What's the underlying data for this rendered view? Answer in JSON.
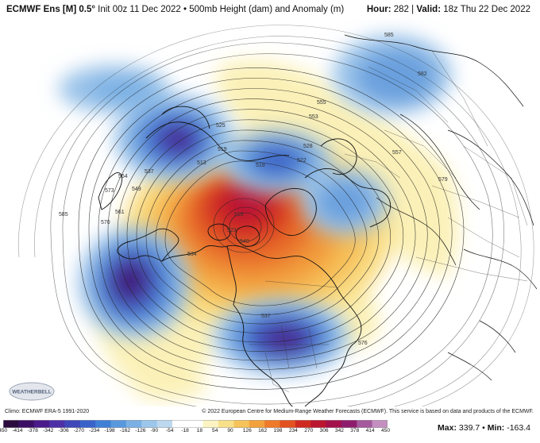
{
  "header": {
    "model": "ECMWF Ens [M]",
    "resolution": "0.5°",
    "init": "Init 00z 11 Dec 2022",
    "field": "500mb Height (dam) and Anomaly (m)",
    "hour_label": "Hour:",
    "hour_value": "282",
    "valid_label": "Valid:",
    "valid_value": "18z Thu 22 Dec 2022"
  },
  "footer": {
    "climo": "Climo: ECMWF ERA-5 1991-2020",
    "credit": "© 2022 European Centre for Medium-Range Weather Forecasts (ECMWF). This service is based on data and products of the ECMWF."
  },
  "logo": {
    "icon": "weatherbell-logo-icon",
    "text": "WEATHERBELL"
  },
  "stats": {
    "max_label": "Max:",
    "max_value": "339.7",
    "min_label": "Min:",
    "min_value": "-163.4"
  },
  "colorbar": {
    "labels": [
      "-450",
      "-414",
      "-378",
      "-342",
      "-306",
      "-270",
      "-234",
      "-198",
      "-162",
      "-126",
      "-90",
      "-54",
      "-18",
      "18",
      "54",
      "90",
      "126",
      "162",
      "198",
      "234",
      "270",
      "306",
      "342",
      "378",
      "414",
      "450"
    ],
    "colors": [
      "#2b0a3d",
      "#3a0f63",
      "#4a1a8a",
      "#4d2fa6",
      "#3f47b8",
      "#3a63c9",
      "#3f7fd6",
      "#5a98dd",
      "#7bb0e4",
      "#9cc6ea",
      "#bcd8ef",
      "#ffffff",
      "#ffffff",
      "#fbf4c2",
      "#f7e08a",
      "#f6c35a",
      "#f3a13c",
      "#ee7a2a",
      "#e35221",
      "#d02a20",
      "#bb1530",
      "#a3104a",
      "#8e1c6c",
      "#a45a9c",
      "#c48fc0"
    ]
  },
  "map": {
    "contour_labels": [
      {
        "text": "585"
      },
      {
        "text": "582"
      },
      {
        "text": "555"
      },
      {
        "text": "553"
      },
      {
        "text": "557"
      },
      {
        "text": "579"
      },
      {
        "text": "528"
      },
      {
        "text": "519"
      },
      {
        "text": "522"
      },
      {
        "text": "519"
      },
      {
        "text": "513"
      },
      {
        "text": "525"
      },
      {
        "text": "564"
      },
      {
        "text": "537"
      },
      {
        "text": "573"
      },
      {
        "text": "549"
      },
      {
        "text": "570"
      },
      {
        "text": "561"
      },
      {
        "text": "585"
      },
      {
        "text": "516"
      },
      {
        "text": "523"
      },
      {
        "text": "540"
      },
      {
        "text": "534"
      },
      {
        "text": "537"
      },
      {
        "text": "576"
      }
    ]
  }
}
